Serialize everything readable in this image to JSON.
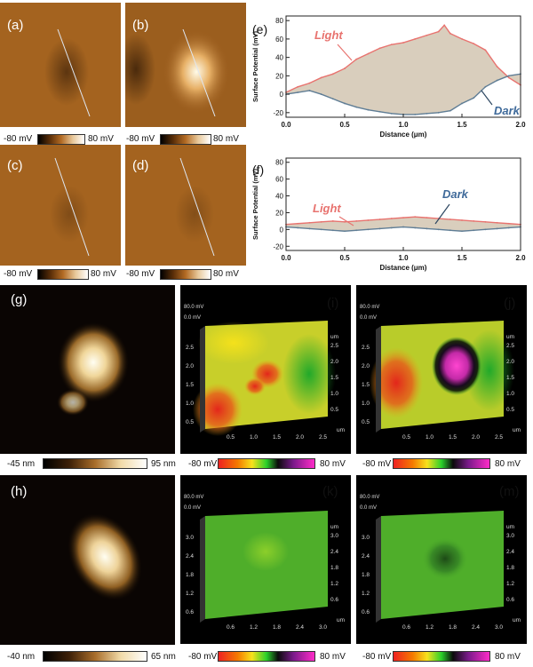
{
  "panels": {
    "a": {
      "label": "(a)",
      "cbar_min": "-80 mV",
      "cbar_max": "80 mV"
    },
    "b": {
      "label": "(b)",
      "cbar_min": "-80 mV",
      "cbar_max": "80 mV"
    },
    "c": {
      "label": "(c)",
      "cbar_min": "-80 mV",
      "cbar_max": "80 mV"
    },
    "d": {
      "label": "(d)",
      "cbar_min": "-80 mV",
      "cbar_max": "80 mV"
    },
    "g": {
      "label": "(g)",
      "cbar_min": "-45 nm",
      "cbar_max": "95 nm"
    },
    "h": {
      "label": "(h)",
      "cbar_min": "-40 nm",
      "cbar_max": "65 nm"
    },
    "i": {
      "label": "(i)",
      "zlabel": "80.0 mV",
      "zlabel2": "0.0 mV",
      "cbar_min": "-80 mV",
      "cbar_max": "80 mV",
      "left_ticks": [
        "2.5",
        "2.0",
        "1.5",
        "1.0",
        "0.5"
      ],
      "right_ticks": [
        "2.5",
        "2.0",
        "1.5",
        "1.0",
        "0.5"
      ],
      "bottom_ticks": [
        "0.5",
        "1.0",
        "1.5",
        "2.0",
        "2.5"
      ],
      "unit": "um"
    },
    "j": {
      "label": "(j)",
      "zlabel": "80.0 mV",
      "zlabel2": "0.0 mV",
      "cbar_min": "-80 mV",
      "cbar_max": "80 mV",
      "left_ticks": [
        "2.5",
        "2.0",
        "1.5",
        "1.0",
        "0.5"
      ],
      "right_ticks": [
        "2.5",
        "2.0",
        "1.5",
        "1.0",
        "0.5"
      ],
      "bottom_ticks": [
        "0.5",
        "1.0",
        "1.5",
        "2.0",
        "2.5"
      ],
      "unit": "um"
    },
    "k": {
      "label": "(k)",
      "zlabel": "80.0 mV",
      "zlabel2": "0.0 mV",
      "cbar_min": "-80 mV",
      "cbar_max": "80 mV",
      "left_ticks": [
        "3.0",
        "2.4",
        "1.8",
        "1.2",
        "0.6"
      ],
      "right_ticks": [
        "3.0",
        "2.4",
        "1.8",
        "1.2",
        "0.6"
      ],
      "bottom_ticks": [
        "0.6",
        "1.2",
        "1.8",
        "2.4",
        "3.0"
      ],
      "unit": "um"
    },
    "m": {
      "label": "(m)",
      "zlabel": "80.0 mV",
      "zlabel2": "0.0 mV",
      "cbar_min": "-80 mV",
      "cbar_max": "80 mV",
      "left_ticks": [
        "3.0",
        "2.4",
        "1.8",
        "1.2",
        "0.6"
      ],
      "right_ticks": [
        "3.0",
        "2.4",
        "1.8",
        "1.2",
        "0.6"
      ],
      "bottom_ticks": [
        "0.6",
        "1.2",
        "1.8",
        "2.4",
        "3.0"
      ],
      "unit": "um"
    }
  },
  "chart_data": [
    {
      "type": "line",
      "panel_label": "(e)",
      "xlabel": "Distance (μm)",
      "ylabel": "Surface Potential (mV)",
      "xlim": [
        0.0,
        2.0
      ],
      "ylim": [
        -25,
        85
      ],
      "xticks": [
        "0.0",
        "0.5",
        "1.0",
        "1.5",
        "2.0"
      ],
      "yticks": [
        "-20",
        "0",
        "20",
        "40",
        "60",
        "80"
      ],
      "annotations": [
        "Light",
        "Dark"
      ],
      "series": [
        {
          "name": "Light",
          "color": "#e8736f",
          "x": [
            0,
            0.1,
            0.2,
            0.3,
            0.4,
            0.5,
            0.6,
            0.7,
            0.8,
            0.9,
            1.0,
            1.1,
            1.2,
            1.3,
            1.35,
            1.4,
            1.5,
            1.6,
            1.7,
            1.8,
            1.9,
            2.0
          ],
          "y": [
            2,
            8,
            12,
            18,
            22,
            28,
            38,
            44,
            50,
            54,
            56,
            60,
            64,
            68,
            75,
            66,
            60,
            55,
            48,
            30,
            18,
            10
          ]
        },
        {
          "name": "Dark",
          "color": "#5f7d95",
          "x": [
            0,
            0.1,
            0.2,
            0.3,
            0.4,
            0.5,
            0.6,
            0.7,
            0.8,
            0.9,
            1.0,
            1.1,
            1.2,
            1.3,
            1.4,
            1.5,
            1.6,
            1.7,
            1.8,
            1.9,
            2.0
          ],
          "y": [
            0,
            2,
            4,
            0,
            -5,
            -10,
            -14,
            -17,
            -19,
            -21,
            -22,
            -22,
            -21,
            -20,
            -18,
            -10,
            -4,
            8,
            15,
            20,
            22
          ]
        }
      ]
    },
    {
      "type": "line",
      "panel_label": "(f)",
      "xlabel": "Distance (μm)",
      "ylabel": "Surface Potential (mV)",
      "xlim": [
        0.0,
        2.0
      ],
      "ylim": [
        -25,
        85
      ],
      "xticks": [
        "0.0",
        "0.5",
        "1.0",
        "1.5",
        "2.0"
      ],
      "yticks": [
        "-20",
        "0",
        "20",
        "40",
        "60",
        "80"
      ],
      "annotations": [
        "Light",
        "Dark"
      ],
      "series": [
        {
          "name": "Light",
          "color": "#e8736f",
          "x": [
            0,
            0.1,
            0.2,
            0.3,
            0.4,
            0.5,
            0.6,
            0.7,
            0.8,
            0.9,
            1.0,
            1.1,
            1.2,
            1.3,
            1.4,
            1.5,
            1.6,
            1.7,
            1.8,
            1.9,
            2.0
          ],
          "y": [
            6,
            7,
            8,
            9,
            10,
            9,
            10,
            11,
            12,
            13,
            14,
            15,
            14,
            13,
            12,
            11,
            10,
            9,
            8,
            7,
            6
          ]
        },
        {
          "name": "Dark",
          "color": "#5f7d95",
          "x": [
            0,
            0.1,
            0.2,
            0.3,
            0.4,
            0.5,
            0.6,
            0.7,
            0.8,
            0.9,
            1.0,
            1.1,
            1.2,
            1.3,
            1.4,
            1.5,
            1.6,
            1.7,
            1.8,
            1.9,
            2.0
          ],
          "y": [
            3,
            2,
            1,
            0,
            -1,
            -2,
            -1,
            0,
            1,
            2,
            3,
            2,
            1,
            0,
            -1,
            -2,
            -1,
            0,
            1,
            2,
            3
          ]
        }
      ]
    }
  ]
}
